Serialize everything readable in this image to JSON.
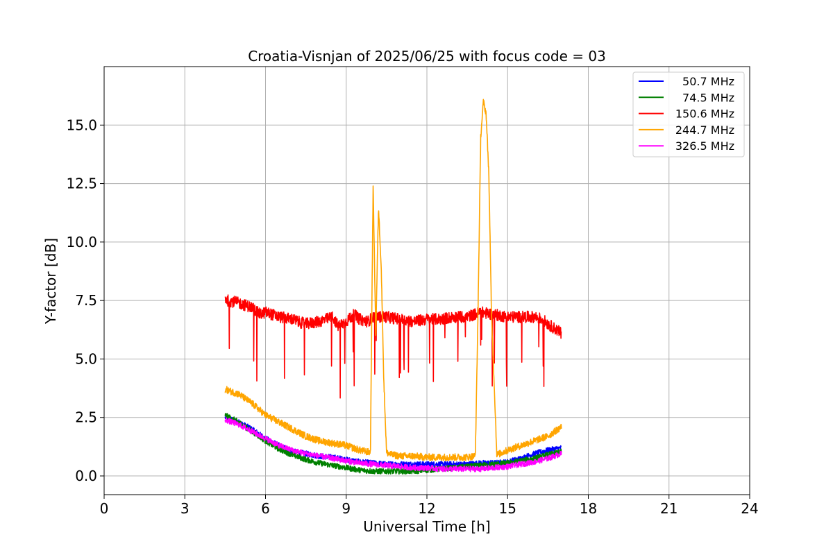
{
  "chart_data": {
    "type": "line",
    "title": "Croatia-Visnjan of 2025/06/25 with focus code = 03",
    "xlabel": "Universal Time [h]",
    "ylabel": "Y-factor [dB]",
    "xlim": [
      0,
      24
    ],
    "ylim": [
      -0.8,
      17.5
    ],
    "xticks": [
      0,
      3,
      6,
      9,
      12,
      15,
      18,
      21,
      24
    ],
    "xtick_labels": [
      "0",
      "3",
      "6",
      "9",
      "12",
      "15",
      "18",
      "21",
      "24"
    ],
    "yticks": [
      0.0,
      2.5,
      5.0,
      7.5,
      10.0,
      12.5,
      15.0
    ],
    "ytick_labels": [
      "0.0",
      "2.5",
      "5.0",
      "7.5",
      "10.0",
      "12.5",
      "15.0"
    ],
    "grid": true,
    "legend_position": "top-right",
    "series": [
      {
        "name": "50.7 MHz",
        "color": "#0000ff",
        "x": [
          4.5,
          5.0,
          5.5,
          6.0,
          6.5,
          7.0,
          7.5,
          8.0,
          8.5,
          9.0,
          9.5,
          10.0,
          10.5,
          11.0,
          11.5,
          12.0,
          12.5,
          13.0,
          13.5,
          14.0,
          14.5,
          15.0,
          15.5,
          16.0,
          16.5,
          17.0
        ],
        "y": [
          2.5,
          2.3,
          2.0,
          1.6,
          1.3,
          1.05,
          0.95,
          0.85,
          0.8,
          0.7,
          0.6,
          0.55,
          0.5,
          0.5,
          0.5,
          0.5,
          0.5,
          0.5,
          0.5,
          0.55,
          0.55,
          0.6,
          0.75,
          0.95,
          1.1,
          1.2
        ]
      },
      {
        "name": "74.5 MHz",
        "color": "#008000",
        "x": [
          4.5,
          5.0,
          5.5,
          6.0,
          6.5,
          7.0,
          7.5,
          8.0,
          8.5,
          9.0,
          9.5,
          10.0,
          10.5,
          11.0,
          11.5,
          12.0,
          12.5,
          13.0,
          13.5,
          14.0,
          14.5,
          15.0,
          15.5,
          16.0,
          16.5,
          17.0
        ],
        "y": [
          2.6,
          2.3,
          1.9,
          1.5,
          1.15,
          0.9,
          0.7,
          0.55,
          0.45,
          0.35,
          0.25,
          0.2,
          0.2,
          0.2,
          0.2,
          0.25,
          0.3,
          0.35,
          0.4,
          0.45,
          0.5,
          0.55,
          0.65,
          0.75,
          0.9,
          1.05
        ]
      },
      {
        "name": "150.6 MHz",
        "color": "#ff0000",
        "x": [
          4.5,
          4.6,
          5.0,
          5.5,
          5.8,
          6.0,
          6.5,
          7.0,
          7.2,
          7.5,
          8.0,
          8.5,
          8.7,
          9.0,
          9.3,
          9.5,
          9.8,
          10.0,
          10.5,
          11.0,
          11.5,
          12.0,
          12.5,
          13.0,
          13.5,
          14.0,
          14.5,
          15.0,
          15.5,
          16.0,
          16.3,
          16.5,
          17.0
        ],
        "y": [
          7.6,
          7.5,
          7.4,
          7.2,
          6.9,
          7.0,
          6.8,
          6.7,
          6.6,
          6.5,
          6.6,
          6.8,
          6.4,
          6.6,
          6.9,
          6.7,
          6.6,
          6.8,
          6.8,
          6.7,
          6.6,
          6.7,
          6.7,
          6.8,
          6.8,
          7.0,
          6.9,
          6.8,
          6.8,
          6.8,
          6.7,
          6.5,
          6.1
        ]
      },
      {
        "name": "244.7 MHz",
        "color": "#ffa500",
        "x": [
          4.5,
          5.0,
          5.5,
          6.0,
          6.5,
          7.0,
          7.5,
          8.0,
          8.5,
          9.0,
          9.5,
          9.9,
          10.0,
          10.1,
          10.2,
          10.3,
          10.4,
          10.5,
          10.7,
          11.0,
          11.5,
          12.0,
          12.5,
          13.0,
          13.5,
          13.8,
          13.9,
          14.0,
          14.1,
          14.2,
          14.3,
          14.4,
          14.6,
          15.0,
          15.5,
          16.0,
          16.5,
          17.0
        ],
        "y": [
          3.7,
          3.5,
          3.1,
          2.6,
          2.3,
          2.0,
          1.7,
          1.5,
          1.4,
          1.3,
          1.1,
          1.0,
          12.5,
          6.0,
          11.5,
          9.0,
          4.0,
          1.0,
          0.9,
          0.85,
          0.85,
          0.8,
          0.8,
          0.8,
          0.8,
          0.85,
          7.0,
          14.5,
          16.0,
          15.5,
          13.0,
          7.0,
          0.9,
          1.1,
          1.3,
          1.5,
          1.7,
          2.1
        ]
      },
      {
        "name": "326.5 MHz",
        "color": "#ff00ff",
        "x": [
          4.5,
          5.0,
          5.5,
          6.0,
          6.5,
          7.0,
          7.5,
          8.0,
          8.5,
          9.0,
          9.5,
          10.0,
          10.5,
          11.0,
          11.5,
          12.0,
          12.5,
          13.0,
          13.5,
          14.0,
          14.5,
          15.0,
          15.5,
          16.0,
          16.5,
          17.0
        ],
        "y": [
          2.4,
          2.2,
          1.9,
          1.6,
          1.3,
          1.1,
          0.95,
          0.85,
          0.75,
          0.65,
          0.55,
          0.5,
          0.45,
          0.4,
          0.35,
          0.35,
          0.3,
          0.3,
          0.3,
          0.3,
          0.35,
          0.4,
          0.5,
          0.6,
          0.75,
          0.95
        ]
      }
    ]
  }
}
